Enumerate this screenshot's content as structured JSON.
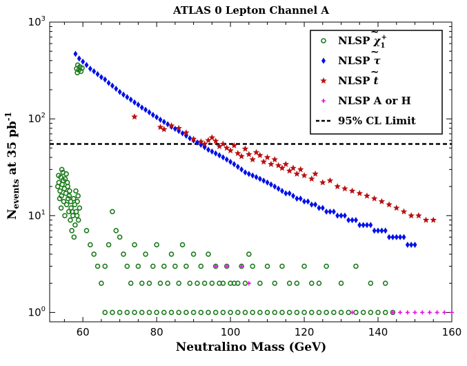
{
  "chart_data": {
    "type": "scatter",
    "title": "ATLAS 0 Lepton Channel A",
    "xlabel": "Neutralino Mass (GeV)",
    "ylabel": {
      "main": "N",
      "sub": "events",
      "rest": " at 35 pb",
      "sup": "-1"
    },
    "xlim": [
      51,
      160
    ],
    "ylim": [
      0.8,
      1000
    ],
    "yscale": "log",
    "x_ticks": [
      60,
      80,
      100,
      120,
      140,
      160
    ],
    "x_tick_labels": [
      "60",
      "80",
      "100",
      "120",
      "140",
      "160"
    ],
    "y_ticks": [
      1,
      10,
      100,
      1000
    ],
    "y_tick_labels": [
      {
        "base": "10",
        "exp": "0"
      },
      {
        "base": "10",
        "exp": "1"
      },
      {
        "base": "10",
        "exp": "2"
      },
      {
        "base": "10",
        "exp": "3"
      }
    ],
    "grid": false,
    "legend_position": "top-right",
    "cl_limit": 55,
    "series": [
      {
        "name": "NLSP χ₁⁺",
        "legend": {
          "main": "NLSP ",
          "sym": "χ",
          "sub": "1",
          "sup": "+"
        },
        "marker": "open-circle",
        "color": "#1a7a1a",
        "points": [
          [
            53.2,
            20
          ],
          [
            53.5,
            22
          ],
          [
            53.8,
            18
          ],
          [
            54.0,
            25
          ],
          [
            54.2,
            16
          ],
          [
            54.4,
            21
          ],
          [
            54.6,
            28
          ],
          [
            54.8,
            14
          ],
          [
            55.0,
            19
          ],
          [
            55.2,
            24
          ],
          [
            55.4,
            17
          ],
          [
            55.6,
            13
          ],
          [
            55.8,
            22
          ],
          [
            56.0,
            15
          ],
          [
            56.2,
            11
          ],
          [
            56.4,
            18
          ],
          [
            56.6,
            9
          ],
          [
            56.8,
            12
          ],
          [
            57.0,
            7
          ],
          [
            57.3,
            10
          ],
          [
            57.6,
            6
          ],
          [
            57.9,
            8
          ],
          [
            58.2,
            11
          ],
          [
            58.5,
            14
          ],
          [
            58.8,
            9
          ],
          [
            59.1,
            12
          ],
          [
            53.4,
            26
          ],
          [
            53.7,
            15
          ],
          [
            54.1,
            12
          ],
          [
            54.3,
            30
          ],
          [
            54.7,
            23
          ],
          [
            55.1,
            10
          ],
          [
            55.5,
            27
          ],
          [
            55.9,
            20
          ],
          [
            56.3,
            16
          ],
          [
            56.7,
            14
          ],
          [
            57.1,
            11
          ],
          [
            57.5,
            15
          ],
          [
            57.8,
            13
          ],
          [
            58.1,
            18
          ],
          [
            58.4,
            10
          ],
          [
            58.7,
            16
          ],
          [
            58.3,
            330
          ],
          [
            58.6,
            360
          ],
          [
            58.9,
            320
          ],
          [
            59.2,
            345
          ],
          [
            59.5,
            310
          ],
          [
            59.8,
            335
          ],
          [
            58.5,
            300
          ],
          [
            61,
            7
          ],
          [
            62,
            5
          ],
          [
            63,
            4
          ],
          [
            64,
            3
          ],
          [
            65,
            2
          ],
          [
            66,
            3
          ],
          [
            67,
            5
          ],
          [
            68,
            11
          ],
          [
            69,
            7
          ],
          [
            70,
            6
          ],
          [
            71,
            4
          ],
          [
            72,
            3
          ],
          [
            73,
            2
          ],
          [
            74,
            5
          ],
          [
            75,
            3
          ],
          [
            76,
            2
          ],
          [
            77,
            4
          ],
          [
            78,
            2
          ],
          [
            79,
            3
          ],
          [
            80,
            5
          ],
          [
            81,
            2
          ],
          [
            82,
            3
          ],
          [
            83,
            2
          ],
          [
            84,
            4
          ],
          [
            85,
            3
          ],
          [
            86,
            2
          ],
          [
            87,
            5
          ],
          [
            88,
            3
          ],
          [
            89,
            2
          ],
          [
            90,
            4
          ],
          [
            91,
            2
          ],
          [
            92,
            3
          ],
          [
            93,
            2
          ],
          [
            94,
            4
          ],
          [
            95,
            2
          ],
          [
            96,
            3
          ],
          [
            97,
            2
          ],
          [
            98,
            2
          ],
          [
            99,
            3
          ],
          [
            100,
            2
          ],
          [
            101,
            2
          ],
          [
            102,
            2
          ],
          [
            103,
            3
          ],
          [
            104,
            2
          ],
          [
            105,
            4
          ],
          [
            106,
            3
          ],
          [
            108,
            2
          ],
          [
            110,
            3
          ],
          [
            112,
            2
          ],
          [
            114,
            3
          ],
          [
            116,
            2
          ],
          [
            118,
            2
          ],
          [
            120,
            3
          ],
          [
            122,
            2
          ],
          [
            124,
            2
          ],
          [
            126,
            3
          ],
          [
            130,
            2
          ],
          [
            134,
            3
          ],
          [
            138,
            2
          ],
          [
            142,
            2
          ],
          [
            66,
            1
          ],
          [
            68,
            1
          ],
          [
            70,
            1
          ],
          [
            72,
            1
          ],
          [
            74,
            1
          ],
          [
            76,
            1
          ],
          [
            78,
            1
          ],
          [
            80,
            1
          ],
          [
            82,
            1
          ],
          [
            84,
            1
          ],
          [
            86,
            1
          ],
          [
            88,
            1
          ],
          [
            90,
            1
          ],
          [
            92,
            1
          ],
          [
            94,
            1
          ],
          [
            96,
            1
          ],
          [
            98,
            1
          ],
          [
            100,
            1
          ],
          [
            102,
            1
          ],
          [
            104,
            1
          ],
          [
            106,
            1
          ],
          [
            108,
            1
          ],
          [
            110,
            1
          ],
          [
            112,
            1
          ],
          [
            114,
            1
          ],
          [
            116,
            1
          ],
          [
            118,
            1
          ],
          [
            120,
            1
          ],
          [
            122,
            1
          ],
          [
            124,
            1
          ],
          [
            126,
            1
          ],
          [
            128,
            1
          ],
          [
            130,
            1
          ],
          [
            132,
            1
          ],
          [
            134,
            1
          ],
          [
            136,
            1
          ],
          [
            138,
            1
          ],
          [
            140,
            1
          ],
          [
            142,
            1
          ],
          [
            144,
            1
          ]
        ]
      },
      {
        "name": "NLSP τ̃",
        "legend": {
          "main": "NLSP ",
          "sym": "τ"
        },
        "marker": "diamond",
        "color": "#0010e8",
        "points": [
          [
            58,
            470
          ],
          [
            59,
            420
          ],
          [
            60,
            390
          ],
          [
            61,
            360
          ],
          [
            62,
            330
          ],
          [
            63,
            310
          ],
          [
            64,
            290
          ],
          [
            65,
            270
          ],
          [
            66,
            255
          ],
          [
            67,
            235
          ],
          [
            68,
            220
          ],
          [
            69,
            205
          ],
          [
            70,
            190
          ],
          [
            71,
            178
          ],
          [
            72,
            168
          ],
          [
            73,
            158
          ],
          [
            74,
            148
          ],
          [
            75,
            140
          ],
          [
            76,
            131
          ],
          [
            77,
            124
          ],
          [
            78,
            117
          ],
          [
            79,
            110
          ],
          [
            80,
            104
          ],
          [
            81,
            98
          ],
          [
            82,
            93
          ],
          [
            83,
            88
          ],
          [
            84,
            83
          ],
          [
            85,
            79
          ],
          [
            86,
            75
          ],
          [
            87,
            71
          ],
          [
            88,
            67
          ],
          [
            89,
            63
          ],
          [
            90,
            60
          ],
          [
            91,
            57
          ],
          [
            92,
            54
          ],
          [
            93,
            51
          ],
          [
            94,
            48
          ],
          [
            95,
            46
          ],
          [
            96,
            44
          ],
          [
            97,
            42
          ],
          [
            98,
            40
          ],
          [
            99,
            38
          ],
          [
            100,
            36
          ],
          [
            101,
            34
          ],
          [
            102,
            32
          ],
          [
            103,
            30
          ],
          [
            104,
            28
          ],
          [
            105,
            27
          ],
          [
            106,
            26
          ],
          [
            107,
            25
          ],
          [
            108,
            24
          ],
          [
            109,
            23
          ],
          [
            110,
            22
          ],
          [
            111,
            21
          ],
          [
            112,
            20
          ],
          [
            113,
            19
          ],
          [
            114,
            18
          ],
          [
            115,
            17
          ],
          [
            116,
            17
          ],
          [
            117,
            16
          ],
          [
            118,
            15
          ],
          [
            119,
            15
          ],
          [
            120,
            14
          ],
          [
            121,
            14
          ],
          [
            122,
            13
          ],
          [
            123,
            13
          ],
          [
            124,
            12
          ],
          [
            125,
            12
          ],
          [
            126,
            11
          ],
          [
            127,
            11
          ],
          [
            128,
            11
          ],
          [
            129,
            10
          ],
          [
            130,
            10
          ],
          [
            131,
            10
          ],
          [
            132,
            9
          ],
          [
            133,
            9
          ],
          [
            134,
            9
          ],
          [
            135,
            8
          ],
          [
            136,
            8
          ],
          [
            137,
            8
          ],
          [
            138,
            8
          ],
          [
            139,
            7
          ],
          [
            140,
            7
          ],
          [
            141,
            7
          ],
          [
            142,
            7
          ],
          [
            143,
            6
          ],
          [
            144,
            6
          ],
          [
            145,
            6
          ],
          [
            146,
            6
          ],
          [
            147,
            6
          ],
          [
            148,
            5
          ],
          [
            149,
            5
          ],
          [
            150,
            5
          ]
        ]
      },
      {
        "name": "NLSP t̃",
        "legend": {
          "main": "NLSP ",
          "sym": "t"
        },
        "marker": "star",
        "color": "#b81010",
        "points": [
          [
            74,
            105
          ],
          [
            81,
            82
          ],
          [
            82,
            78
          ],
          [
            84,
            85
          ],
          [
            86,
            80
          ],
          [
            88,
            72
          ],
          [
            90,
            62
          ],
          [
            92,
            58
          ],
          [
            93,
            55
          ],
          [
            94,
            60
          ],
          [
            95,
            64
          ],
          [
            96,
            59
          ],
          [
            97,
            52
          ],
          [
            98,
            55
          ],
          [
            99,
            50
          ],
          [
            100,
            47
          ],
          [
            101,
            53
          ],
          [
            102,
            44
          ],
          [
            103,
            41
          ],
          [
            104,
            49
          ],
          [
            105,
            43
          ],
          [
            106,
            38
          ],
          [
            107,
            45
          ],
          [
            108,
            42
          ],
          [
            109,
            36
          ],
          [
            110,
            40
          ],
          [
            111,
            34
          ],
          [
            112,
            38
          ],
          [
            113,
            33
          ],
          [
            114,
            31
          ],
          [
            115,
            34
          ],
          [
            116,
            29
          ],
          [
            117,
            31
          ],
          [
            118,
            27
          ],
          [
            119,
            30
          ],
          [
            120,
            26
          ],
          [
            122,
            24
          ],
          [
            123,
            27
          ],
          [
            125,
            22
          ],
          [
            127,
            23
          ],
          [
            129,
            20
          ],
          [
            131,
            19
          ],
          [
            133,
            18
          ],
          [
            135,
            17
          ],
          [
            137,
            16
          ],
          [
            139,
            15
          ],
          [
            141,
            14
          ],
          [
            143,
            13
          ],
          [
            145,
            12
          ],
          [
            147,
            11
          ],
          [
            149,
            10
          ],
          [
            151,
            10
          ],
          [
            153,
            9
          ],
          [
            155,
            9
          ]
        ]
      },
      {
        "name": "NLSP A or H",
        "legend": {
          "main": "NLSP A or H",
          "sym": ""
        },
        "marker": "plus",
        "color": "#e010e0",
        "points": [
          [
            96,
            3
          ],
          [
            99,
            3
          ],
          [
            103,
            3
          ],
          [
            105,
            2
          ],
          [
            133,
            1
          ],
          [
            144,
            1
          ],
          [
            146,
            1
          ],
          [
            148,
            1
          ],
          [
            150,
            1
          ],
          [
            152,
            1
          ],
          [
            154,
            1
          ],
          [
            156,
            1
          ],
          [
            158,
            1
          ],
          [
            160,
            1
          ]
        ]
      },
      {
        "name": "95% CL Limit",
        "legend": {
          "main": "95% CL Limit",
          "sym": ""
        },
        "marker": "dashed-line",
        "color": "#000000",
        "points": []
      }
    ]
  }
}
